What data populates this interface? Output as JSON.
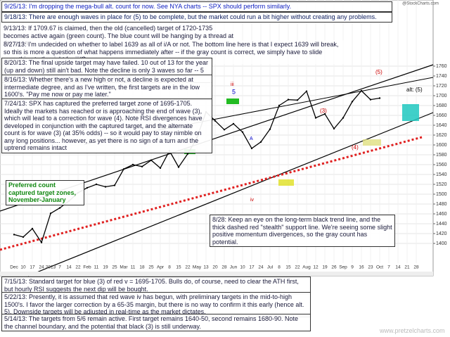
{
  "chart_data": {
    "type": "line",
    "header": "@StockCharts.com",
    "categories": [
      "Dec",
      "10",
      "17",
      "24",
      "2013",
      "7",
      "14",
      "22",
      "Feb",
      "11",
      "19",
      "25",
      "Mar",
      "11",
      "18",
      "25",
      "Apr",
      "8",
      "15",
      "22",
      "May",
      "13",
      "20",
      "28",
      "Jun",
      "10",
      "17",
      "24",
      "Jul",
      "8",
      "15",
      "22",
      "Aug",
      "12",
      "19",
      "26",
      "Sep",
      "9",
      "16",
      "23",
      "Oct",
      "7",
      "14",
      "21",
      "28"
    ],
    "series": [
      {
        "name": "$SPX",
        "color": "#000000",
        "values": [
          1418,
          1413,
          1430,
          1402,
          1461,
          1472,
          1486,
          1503,
          1513,
          1520,
          1515,
          1518,
          1551,
          1560,
          1556,
          1569,
          1553,
          1588,
          1555,
          1582,
          1614,
          1667,
          1649,
          1631,
          1643,
          1626,
          1593,
          1606,
          1632,
          1680,
          1692,
          1691,
          1709,
          1655,
          1663,
          1633,
          1655,
          1688,
          1710,
          1692,
          1695,
          null,
          null,
          null,
          null
        ]
      }
    ],
    "ylim": [
      1360,
      1780
    ],
    "yticks": [
      1400,
      1420,
      1440,
      1460,
      1480,
      1500,
      1520,
      1540,
      1560,
      1580,
      1600,
      1620,
      1640,
      1660,
      1680,
      1700,
      1720,
      1740,
      1760
    ],
    "grid": true,
    "wave_labels": [
      "iii",
      "5",
      "iv",
      "A",
      "(3)",
      "(4)",
      "(5)",
      "alt: (5)"
    ],
    "annotations": [
      "9/25/13: I'm dropping the mega-bull alt. count for now.  See NYA charts -- SPX should perform similarly.",
      "9/18/13: There are enough waves in place for (5) to be complete, but the market could run a bit higher without creating any problems.",
      "9/13/13: If 1709.67 is claimed, then the old (cancelled) target of 1720-1735 becomes active again (green count).  The blue count will be hanging by a thread at the open.",
      "8/27/13: I'm undecided on whether to label 1639 as all of i/A or not. The bottom line here is that I expect 1639 will break, so this is more a question of what happens immediately after -- if the gray count is correct, we simply have to slide everything to the right for iii/C.",
      "8/20/13: The final upside target may have failed.  10 out of 13 for the year (up and down) still ain't bad.  Note the decline is only 3 waves so far -- 5 should confirm the intermediate trend change.",
      "8/16/13: Whether there's a new high or not, a decline is expected at intermediate degree, and as I've written, the first targets are in the low 1600's.  \"Pay me now or pay me later.\"",
      "7/24/13:  SPX has captured the preferred target zone of 1695-1705.  Ideally the markets has reached or is approaching the end of wave (3), which will lead to a correction for wave (4).  Note RSI divergences have developed in conjunction with the captured target, and the alternate count is for wave (3) (at 35% odds) -- so it would pay to stay nimble on any long positions... however, as yet there is no sign of a turn and the uptrend remains intact",
      "Preferred count captured target zones, November-January",
      "8/28:  Keep an eye on the long-term black trend line, and the thick dashed red \"stealth\" support line.  We're seeing some slight positive momentum divergences, so the gray count has potential.",
      "7/15/13: Standard target for blue (3) of red v = 1695-1705.  Bulls do, of course, need to clear the ATH first, but hourly RSI suggests the next dip will be bought.",
      "5/22/13: Presently, it is assumed that red wave iv has begun, with preliminary targets in the mid-to-high 1500's.  I favor the larger correction by a 65-35 margin, but there is no way to confirm it this early (hence alt. 5).  Downside targets will be adjusted in real-time as the market dictates.",
      "5/14/13:  The targets from 5/6 remain active.  First target remains 1640-50, second remains 1680-90.  Note the channel boundary, and the potential that black (3) is still underway.",
      "www.pretzelcharts.com"
    ]
  }
}
